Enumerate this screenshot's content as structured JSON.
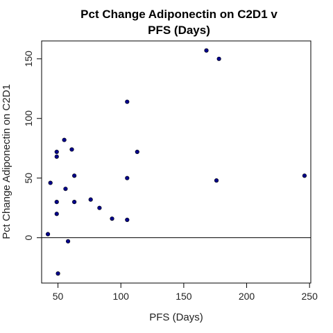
{
  "chart_data": {
    "type": "scatter",
    "title_lines": [
      "Pct Change Adiponectin on C2D1 v",
      "PFS (Days)"
    ],
    "xlabel": "PFS (Days)",
    "ylabel": "Pct Change Adiponectin on C2D1",
    "xlim": [
      37,
      251
    ],
    "ylim": [
      -38,
      165
    ],
    "x_ticks": [
      50,
      100,
      150,
      200,
      250
    ],
    "y_ticks": [
      0,
      50,
      100,
      150
    ],
    "x_tick_labels": [
      "50",
      "100",
      "150",
      "200",
      "250"
    ],
    "y_tick_labels": [
      "0",
      "50",
      "100",
      "150"
    ],
    "reference_line_y": 0,
    "grid": false,
    "point_color": "#00008b",
    "points": [
      {
        "x": 42,
        "y": 3
      },
      {
        "x": 44,
        "y": 46
      },
      {
        "x": 49,
        "y": 72
      },
      {
        "x": 49,
        "y": 68
      },
      {
        "x": 49,
        "y": 30
      },
      {
        "x": 49,
        "y": 20
      },
      {
        "x": 50,
        "y": -30
      },
      {
        "x": 55,
        "y": 82
      },
      {
        "x": 56,
        "y": 41
      },
      {
        "x": 58,
        "y": -3
      },
      {
        "x": 61,
        "y": 74
      },
      {
        "x": 63,
        "y": 52
      },
      {
        "x": 63,
        "y": 30
      },
      {
        "x": 76,
        "y": 32
      },
      {
        "x": 83,
        "y": 25
      },
      {
        "x": 93,
        "y": 16
      },
      {
        "x": 105,
        "y": 114
      },
      {
        "x": 105,
        "y": 50
      },
      {
        "x": 105,
        "y": 15
      },
      {
        "x": 113,
        "y": 72
      },
      {
        "x": 168,
        "y": 157
      },
      {
        "x": 176,
        "y": 48
      },
      {
        "x": 178,
        "y": 150
      },
      {
        "x": 246,
        "y": 52
      }
    ]
  }
}
